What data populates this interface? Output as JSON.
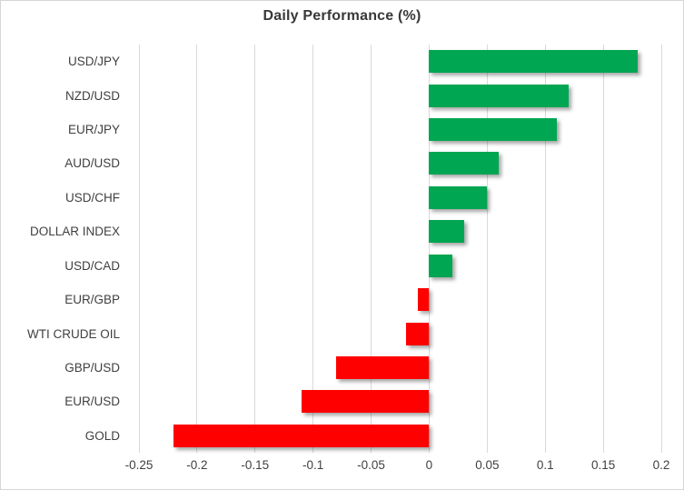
{
  "chart_data": {
    "type": "bar",
    "orientation": "horizontal",
    "title": "Daily Performance (%)",
    "categories": [
      "USD/JPY",
      "NZD/USD",
      "EUR/JPY",
      "AUD/USD",
      "USD/CHF",
      "DOLLAR INDEX",
      "USD/CAD",
      "EUR/GBP",
      "WTI CRUDE OIL",
      "GBP/USD",
      "EUR/USD",
      "GOLD"
    ],
    "values": [
      0.18,
      0.12,
      0.11,
      0.06,
      0.05,
      0.03,
      0.02,
      -0.01,
      -0.02,
      -0.08,
      -0.11,
      -0.22
    ],
    "xlabel": "",
    "ylabel": "",
    "xlim": [
      -0.25,
      0.2
    ],
    "x_ticks": [
      -0.25,
      -0.2,
      -0.15,
      -0.1,
      -0.05,
      0,
      0.05,
      0.1,
      0.15,
      0.2
    ],
    "x_tick_labels": [
      "-0.25",
      "-0.2",
      "-0.15",
      "-0.1",
      "-0.05",
      "0",
      "0.05",
      "0.1",
      "0.15",
      "0.2"
    ],
    "grid": true,
    "legend": false,
    "colors": {
      "positive": "#00A651",
      "negative": "#FF0000",
      "gridline": "#D9D9D9",
      "title_text": "#383838",
      "label_text": "#3F3F3F"
    }
  }
}
